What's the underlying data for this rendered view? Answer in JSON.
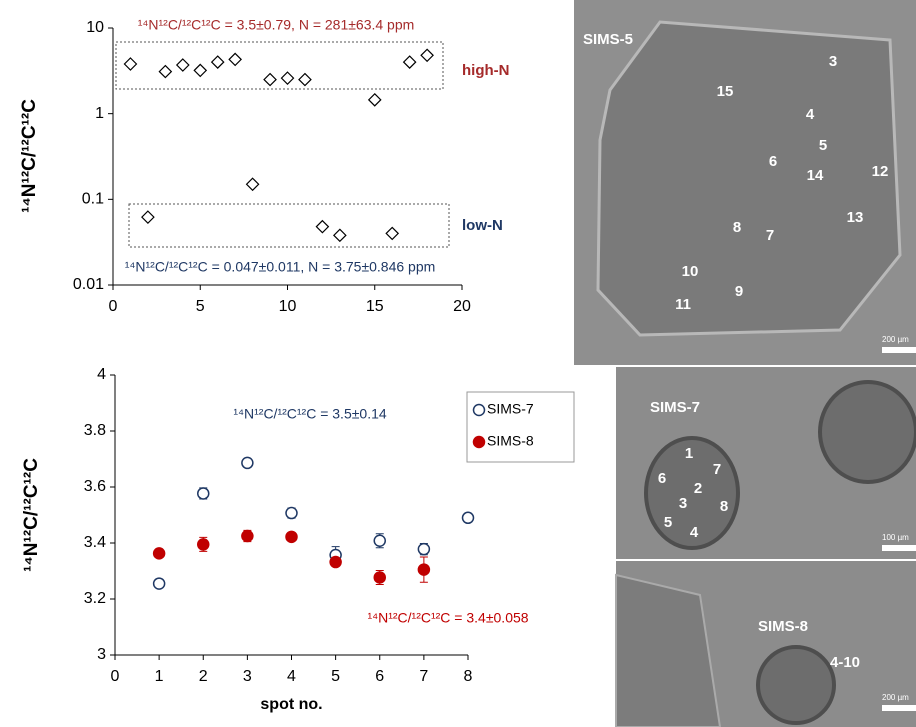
{
  "chart_data": [
    {
      "type": "scatter",
      "y_label": "¹⁴N¹²C/¹²C¹²C",
      "log_y": true,
      "xlim": [
        0,
        20
      ],
      "xticks": [
        0,
        5,
        10,
        15,
        20
      ],
      "ylim": [
        0.01,
        10
      ],
      "yticks": [
        0.01,
        0.1,
        1,
        10
      ],
      "series": [
        {
          "color": "#000000",
          "marker": "diamond",
          "x": [
            1,
            2,
            3,
            4,
            5,
            6,
            7,
            8,
            9,
            10,
            11,
            12,
            13,
            15,
            16,
            17,
            18
          ],
          "values": [
            3.8,
            0.062,
            3.1,
            3.7,
            3.2,
            4.0,
            4.3,
            0.15,
            2.5,
            2.6,
            2.5,
            0.048,
            0.038,
            1.45,
            0.04,
            4.0,
            4.8
          ]
        }
      ],
      "annotations": [
        {
          "text": "¹⁴N¹²C/¹²C¹²C = 3.5±0.79,  N = 281±63.4 ppm",
          "color": "#a52a2a"
        },
        {
          "text": "high-N",
          "color": "#a52a2a"
        },
        {
          "text": "low-N",
          "color": "#1f3864"
        },
        {
          "text": "¹⁴N¹²C/¹²C¹²C = 0.047±0.011,  N = 3.75±0.846 ppm",
          "color": "#1f3864"
        }
      ]
    },
    {
      "type": "scatter",
      "y_label": "¹⁴N¹²C/¹²C¹²C",
      "x_label": "spot no.",
      "log_y": false,
      "legend": "top-right",
      "xlim": [
        0,
        8
      ],
      "xticks": [
        0,
        1,
        2,
        3,
        4,
        5,
        6,
        7,
        8
      ],
      "ylim": [
        3,
        4
      ],
      "yticks": [
        3,
        3.2,
        3.4,
        3.6,
        3.8,
        4
      ],
      "series": [
        {
          "name": "SIMS-7",
          "color": "#1f3864",
          "marker": "circle-open",
          "x": [
            1,
            2,
            3,
            4,
            5,
            6,
            7,
            8
          ],
          "values": [
            3.255,
            3.577,
            3.686,
            3.507,
            3.357,
            3.408,
            3.378,
            3.49
          ],
          "errors": [
            0.015,
            0.02,
            0.015,
            0.018,
            0.03,
            0.025,
            0.02,
            0.01
          ]
        },
        {
          "name": "SIMS-8",
          "color": "#c00000",
          "marker": "circle",
          "x": [
            1,
            2,
            3,
            4,
            5,
            6,
            7
          ],
          "values": [
            3.363,
            3.395,
            3.425,
            3.422,
            3.332,
            3.277,
            3.305
          ],
          "errors": [
            0.01,
            0.025,
            0.02,
            0.01,
            0.01,
            0.025,
            0.045
          ]
        }
      ],
      "annotations": [
        {
          "text": "¹⁴N¹²C/¹²C¹²C = 3.5±0.14",
          "color": "#1f3864"
        },
        {
          "text": "¹⁴N¹²C/¹²C¹²C = 3.4±0.058",
          "color": "#c00000"
        }
      ]
    }
  ],
  "photos": [
    {
      "label": "SIMS-5",
      "spots": [
        "3",
        "15",
        "4",
        "5",
        "6",
        "14",
        "12",
        "13",
        "8",
        "7",
        "10",
        "9",
        "11"
      ],
      "scale": "200 µm"
    },
    {
      "label": "SIMS-7",
      "spots": [
        "1",
        "6",
        "7",
        "2",
        "3",
        "8",
        "5",
        "4"
      ],
      "scale": "100 µm"
    },
    {
      "label": "SIMS-8",
      "spots": [
        "4-10"
      ],
      "scale": "200 µm"
    }
  ]
}
